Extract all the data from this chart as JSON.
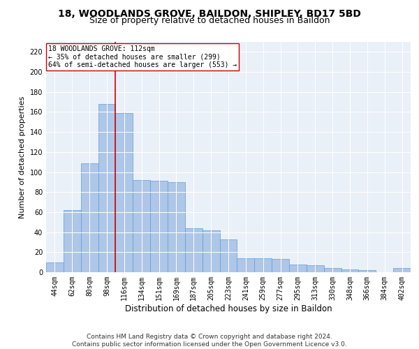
{
  "title1": "18, WOODLANDS GROVE, BAILDON, SHIPLEY, BD17 5BD",
  "title2": "Size of property relative to detached houses in Baildon",
  "xlabel": "Distribution of detached houses by size in Baildon",
  "ylabel": "Number of detached properties",
  "footer1": "Contains HM Land Registry data © Crown copyright and database right 2024.",
  "footer2": "Contains public sector information licensed under the Open Government Licence v3.0.",
  "annotation_line1": "18 WOODLANDS GROVE: 112sqm",
  "annotation_line2": "← 35% of detached houses are smaller (299)",
  "annotation_line3": "64% of semi-detached houses are larger (553) →",
  "bar_labels": [
    "44sqm",
    "62sqm",
    "80sqm",
    "98sqm",
    "116sqm",
    "134sqm",
    "151sqm",
    "169sqm",
    "187sqm",
    "205sqm",
    "223sqm",
    "241sqm",
    "259sqm",
    "277sqm",
    "295sqm",
    "313sqm",
    "330sqm",
    "348sqm",
    "366sqm",
    "384sqm",
    "402sqm"
  ],
  "bar_values": [
    10,
    62,
    109,
    168,
    159,
    92,
    91,
    90,
    44,
    42,
    33,
    14,
    14,
    13,
    8,
    7,
    4,
    3,
    2,
    0,
    4
  ],
  "bar_color": "#aec6e8",
  "bar_edge_color": "#5a9fd4",
  "vline_color": "#cc0000",
  "vline_bar_index": 4,
  "annotation_box_color": "#ffffff",
  "annotation_box_edge": "#cc0000",
  "ylim": [
    0,
    230
  ],
  "yticks": [
    0,
    20,
    40,
    60,
    80,
    100,
    120,
    140,
    160,
    180,
    200,
    220
  ],
  "bg_color": "#eaf0f8",
  "title_fontsize": 10,
  "subtitle_fontsize": 9,
  "axis_label_fontsize": 8,
  "tick_fontsize": 7,
  "footer_fontsize": 6.5,
  "annotation_fontsize": 7
}
